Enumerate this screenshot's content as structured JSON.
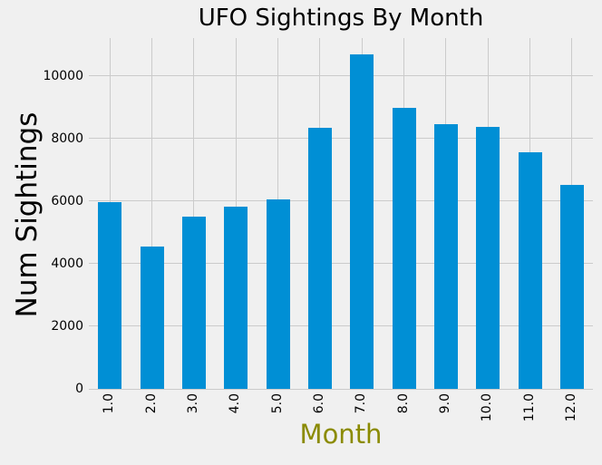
{
  "colors": {
    "background": "#f0f0f0",
    "bar": "#008fd5",
    "grid": "#cbcbcb",
    "text": "#000000",
    "xlabel_color": "#8b8b00"
  },
  "chart_data": {
    "type": "bar",
    "title": "UFO Sightings By Month",
    "xlabel": "Month",
    "ylabel": "Num Sightings",
    "categories": [
      "1.0",
      "2.0",
      "3.0",
      "4.0",
      "5.0",
      "6.0",
      "7.0",
      "8.0",
      "9.0",
      "10.0",
      "11.0",
      "12.0"
    ],
    "values": [
      5979,
      4559,
      5494,
      5817,
      6062,
      8357,
      10682,
      8987,
      8476,
      8372,
      7574,
      6513
    ],
    "yticks": [
      0,
      2000,
      4000,
      6000,
      8000,
      10000
    ],
    "ytick_labels": [
      "0",
      "2000",
      "4000",
      "6000",
      "8000",
      "10000"
    ],
    "ylim": [
      0,
      11216
    ],
    "grid": true,
    "legend": false
  }
}
